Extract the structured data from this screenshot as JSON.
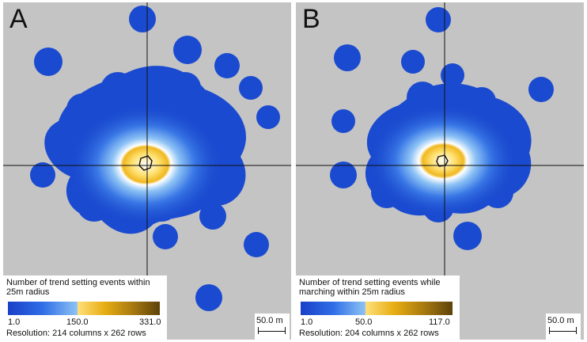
{
  "panels": [
    {
      "letter": "A",
      "legend_title": "Number of trend setting events within 25m radius",
      "legend_min": "1.0",
      "legend_mid": "150.0",
      "legend_max": "331.0",
      "resolution": "Resolution: 214 columns x 262 rows",
      "scale_label": "50.0 m"
    },
    {
      "letter": "B",
      "legend_title": "Number of trend setting events while marching within 25m radius",
      "legend_min": "1.0",
      "legend_mid": "50.0",
      "legend_max": "117.0",
      "resolution": "Resolution: 204 columns x 262 rows",
      "scale_label": "50.0 m"
    }
  ],
  "colors": {
    "background": "#c4c4c4",
    "low": "#1a3fc8",
    "mid": "#8ec3f5",
    "high": "#e6ad12",
    "max": "#5d420a"
  }
}
